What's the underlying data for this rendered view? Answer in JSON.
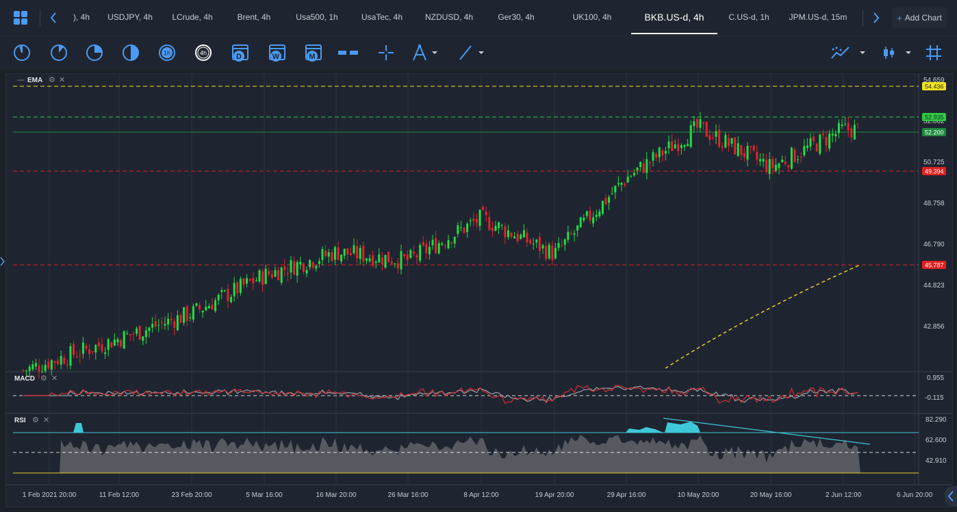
{
  "tabs": [
    {
      "label": "), 4h",
      "active": false
    },
    {
      "label": "USDJPY, 4h",
      "active": false
    },
    {
      "label": "LCrude, 4h",
      "active": false
    },
    {
      "label": "Brent, 4h",
      "active": false
    },
    {
      "label": "Usa500, 1h",
      "active": false
    },
    {
      "label": "UsaTec, 4h",
      "active": false
    },
    {
      "label": "NZDUSD, 4h",
      "active": false
    },
    {
      "label": "Ger30, 4h",
      "active": false
    },
    {
      "label": "UK100, 4h",
      "active": false
    },
    {
      "label": "BKB.US-d, 4h",
      "active": true
    },
    {
      "label": "C.US-d, 1h",
      "active": false
    },
    {
      "label": "JPM.US-d, 15m",
      "active": false
    }
  ],
  "add_chart": {
    "plus": "+",
    "label": "Add Chart"
  },
  "toolbar": {
    "tools": [
      {
        "name": "1-minute-timeframe-icon"
      },
      {
        "name": "5-minute-timeframe-icon"
      },
      {
        "name": "15-minute-timeframe-icon"
      },
      {
        "name": "30-minute-timeframe-icon"
      },
      {
        "name": "1-hour-timeframe-icon",
        "text": "1h"
      },
      {
        "name": "4-hour-timeframe-icon",
        "text": "4h",
        "selected": true
      },
      {
        "name": "daily-timeframe-icon",
        "text": "D"
      },
      {
        "name": "weekly-timeframe-icon",
        "text": "W"
      },
      {
        "name": "monthly-timeframe-icon",
        "text": "M"
      },
      {
        "name": "horizontal-lines-icon"
      },
      {
        "name": "crosshair-icon"
      },
      {
        "name": "drawing-compass-icon"
      },
      {
        "name": "trend-line-icon"
      },
      {
        "name": "indicators-icon"
      },
      {
        "name": "chart-type-candles-icon"
      },
      {
        "name": "grid-icon"
      }
    ]
  },
  "main_pane": {
    "indicator": "EMA",
    "price_labels": [
      "54.659",
      "52.862",
      "50.725",
      "48.758",
      "46.790",
      "44.823",
      "42.856"
    ],
    "level_badges": [
      {
        "value": "54.436",
        "color": "#f5e61c"
      },
      {
        "value": "52.935",
        "color": "#2ecc40"
      },
      {
        "value": "52.200",
        "color": "#1e8a3e"
      },
      {
        "value": "49.394",
        "color": "#e02020"
      },
      {
        "value": "45.787",
        "color": "#e02020"
      }
    ]
  },
  "macd_pane": {
    "label": "MACD",
    "scale": [
      "0.955",
      "-0.115"
    ]
  },
  "rsi_pane": {
    "label": "RSI",
    "scale": [
      "82.290",
      "62.600",
      "42.910"
    ]
  },
  "x_axis": [
    "1 Feb 2021 20:00",
    "11 Feb 12:00",
    "23 Feb 20:00",
    "5 Mar 16:00",
    "16 Mar 20:00",
    "26 Mar 16:00",
    "8 Apr 12:00",
    "19 Apr 20:00",
    "29 Apr 16:00",
    "10 May 20:00",
    "20 May 16:00",
    "2 Jun 12:00",
    "6 Jun 20:00"
  ],
  "colors": {
    "up": "#22dd44",
    "down": "#e0242c",
    "accent": "#4a9bf5",
    "bg": "#1f2530"
  },
  "chart_data": {
    "type": "candlestick",
    "symbol": "BKB.US-d",
    "timeframe": "4h",
    "close_path": [
      [
        "1 Feb 2021 20:00",
        41.2
      ],
      [
        "11 Feb 12:00",
        42.3
      ],
      [
        "23 Feb 20:00",
        43.5
      ],
      [
        "5 Mar 16:00",
        45.3
      ],
      [
        "16 Mar 20:00",
        46.4
      ],
      [
        "26 Mar 16:00",
        46.0
      ],
      [
        "8 Apr 12:00",
        48.0
      ],
      [
        "19 Apr 20:00",
        46.3
      ],
      [
        "29 Apr 16:00",
        49.9
      ],
      [
        "10 May 20:00",
        52.3
      ],
      [
        "20 May 16:00",
        50.4
      ],
      [
        "2 Jun 12:00",
        52.2
      ]
    ],
    "ylim": [
      40.9,
      54.7
    ],
    "ema_start": 40.9,
    "ema_end": 45.8
  }
}
